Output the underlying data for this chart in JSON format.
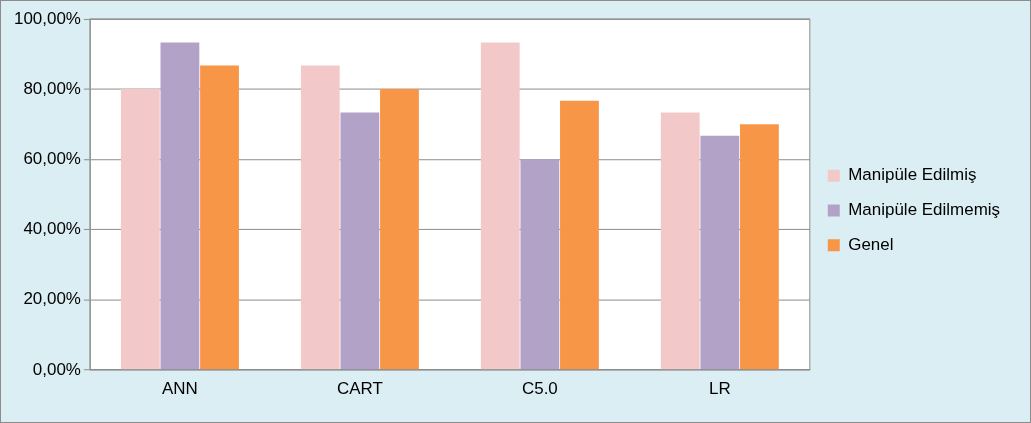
{
  "chart_data": {
    "type": "bar",
    "categories": [
      "ANN",
      "CART",
      "C5.0",
      "LR"
    ],
    "series": [
      {
        "name": "Manipüle Edilmiş",
        "color": "#f2c9c8",
        "values": [
          80,
          86.7,
          93.3,
          73.3
        ]
      },
      {
        "name": "Manipüle Edilmemiş",
        "color": "#b3a2c7",
        "values": [
          93.3,
          73.3,
          60,
          66.7
        ]
      },
      {
        "name": "Genel",
        "color": "#f79646",
        "values": [
          86.7,
          80,
          76.7,
          70
        ]
      }
    ],
    "ylim": [
      0,
      100
    ],
    "yticks": [
      {
        "value": 0,
        "label": "0,00%"
      },
      {
        "value": 20,
        "label": "20,00%"
      },
      {
        "value": 40,
        "label": "40,00%"
      },
      {
        "value": 60,
        "label": "60,00%"
      },
      {
        "value": 80,
        "label": "80,00%"
      },
      {
        "value": 100,
        "label": "100,00%"
      }
    ],
    "grid": "y",
    "legend": "right"
  }
}
